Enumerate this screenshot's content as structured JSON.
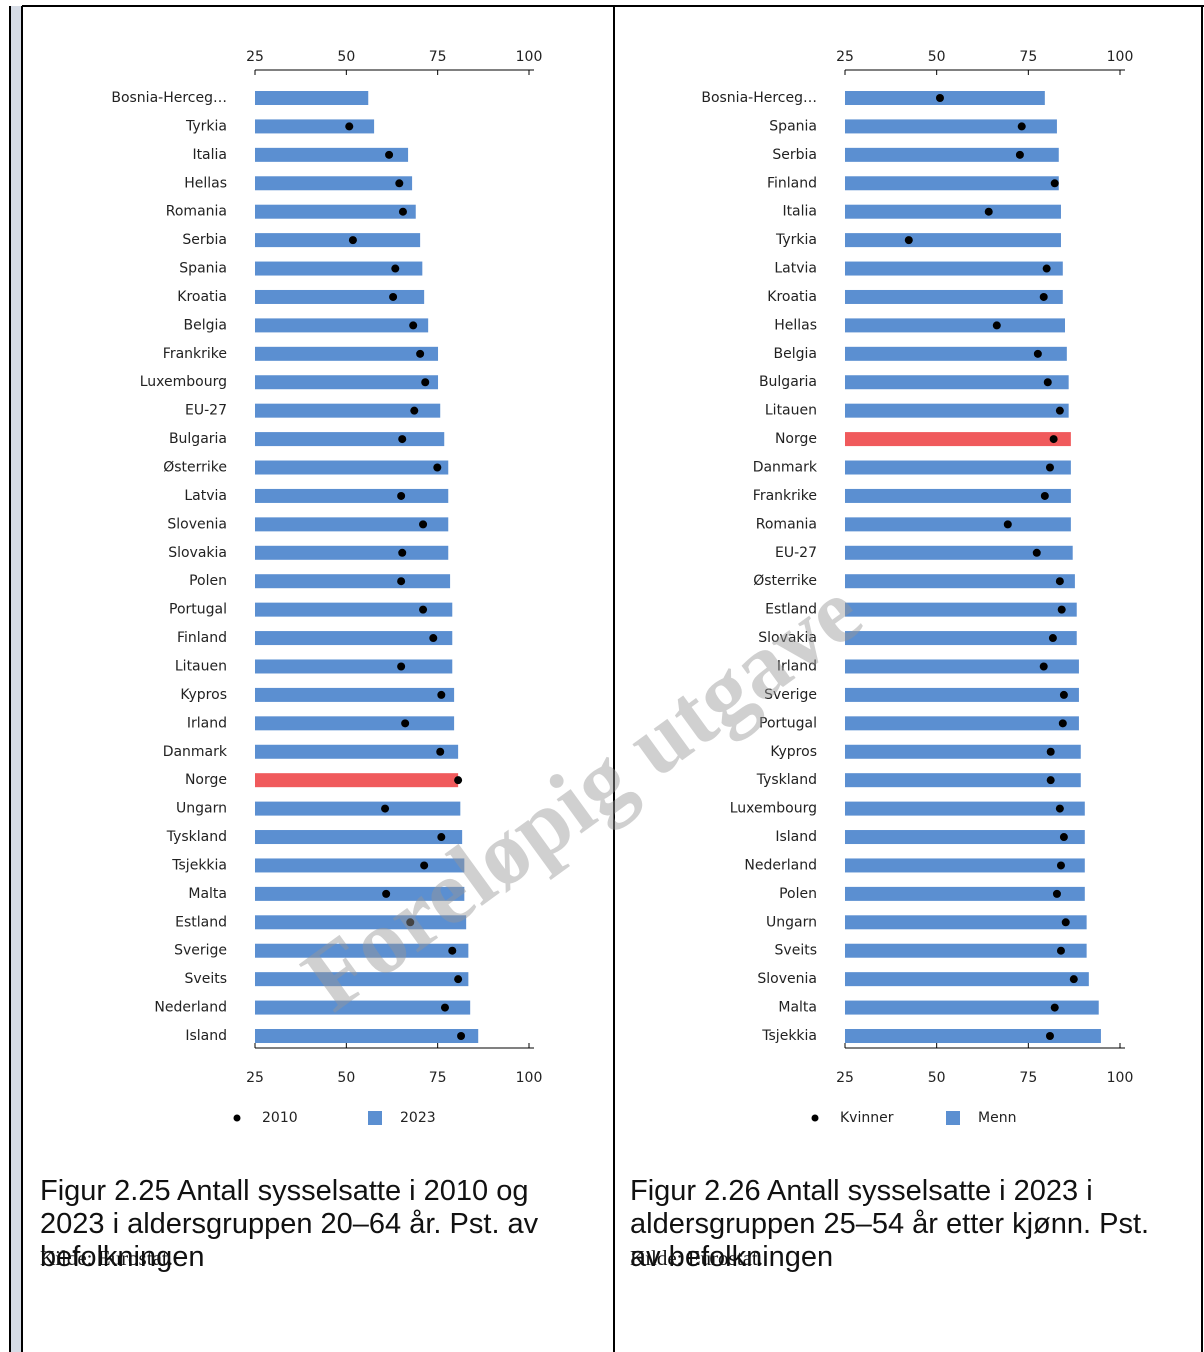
{
  "chart_data": [
    {
      "type": "bar",
      "categories": [
        "Bosnia-Herceg…",
        "Tyrkia",
        "Italia",
        "Hellas",
        "Romania",
        "Serbia",
        "Spania",
        "Kroatia",
        "Belgia",
        "Frankrike",
        "Luxembourg",
        "EU-27",
        "Bulgaria",
        "Østerrike",
        "Latvia",
        "Slovenia",
        "Slovakia",
        "Polen",
        "Portugal",
        "Finland",
        "Litauen",
        "Kypros",
        "Irland",
        "Danmark",
        "Norge",
        "Ungarn",
        "Tyskland",
        "Tsjekkia",
        "Malta",
        "Estland",
        "Sverige",
        "Sveits",
        "Nederland",
        "Island"
      ],
      "series": [
        {
          "name": "2010",
          "marker": "dot",
          "color": "#000000",
          "values": [
            null,
            50.8,
            61.7,
            64.5,
            65.5,
            51.8,
            63.4,
            62.8,
            68.3,
            70.2,
            71.6,
            68.6,
            65.3,
            74.9,
            65.0,
            71.0,
            65.3,
            65.0,
            71.0,
            73.8,
            65.0,
            76.0,
            66.1,
            75.7,
            80.6,
            60.6,
            76.0,
            71.3,
            60.9,
            67.5,
            79.0,
            80.6,
            77.0,
            81.4
          ]
        },
        {
          "name": "2023",
          "marker": "bar",
          "color": "#5b8fd1",
          "values": [
            56.0,
            57.6,
            66.9,
            68.0,
            69.0,
            70.2,
            70.8,
            71.3,
            72.4,
            75.1,
            75.1,
            75.7,
            76.8,
            77.9,
            77.9,
            77.9,
            77.9,
            78.4,
            79.0,
            79.0,
            79.0,
            79.5,
            79.5,
            80.6,
            80.6,
            81.2,
            81.7,
            82.3,
            82.3,
            82.8,
            83.4,
            83.4,
            83.9,
            86.1
          ]
        }
      ],
      "highlight": {
        "category": "Norge",
        "color": "#f05a5c"
      },
      "xlim": [
        25,
        100
      ],
      "xticks": [
        25,
        50,
        75,
        100
      ],
      "caption": "Figur 2.25 Antall sysselsatte i 2010 og 2023 i aldersgruppen 20–64 år. Pst. av befolkningen",
      "source": "Kilde: Eurostat."
    },
    {
      "type": "bar",
      "categories": [
        "Bosnia-Herceg…",
        "Spania",
        "Serbia",
        "Finland",
        "Italia",
        "Tyrkia",
        "Latvia",
        "Kroatia",
        "Hellas",
        "Belgia",
        "Bulgaria",
        "Litauen",
        "Norge",
        "Danmark",
        "Frankrike",
        "Romania",
        "EU-27",
        "Østerrike",
        "Estland",
        "Slovakia",
        "Irland",
        "Sverige",
        "Portugal",
        "Kypros",
        "Tyskland",
        "Luxembourg",
        "Island",
        "Nederland",
        "Polen",
        "Ungarn",
        "Sveits",
        "Slovenia",
        "Malta",
        "Tsjekkia"
      ],
      "series": [
        {
          "name": "Kvinner",
          "marker": "dot",
          "color": "#000000",
          "values": [
            50.9,
            73.2,
            72.7,
            82.2,
            64.2,
            42.4,
            80.0,
            79.2,
            66.4,
            77.6,
            80.3,
            83.6,
            81.9,
            80.9,
            79.5,
            69.4,
            77.3,
            83.6,
            84.1,
            81.7,
            79.2,
            84.7,
            84.4,
            81.1,
            81.1,
            83.6,
            84.7,
            83.9,
            82.8,
            85.2,
            83.9,
            87.4,
            82.2,
            80.9
          ]
        },
        {
          "name": "Menn",
          "marker": "bar",
          "color": "#5b8fd1",
          "values": [
            79.5,
            82.8,
            83.3,
            83.3,
            83.9,
            83.9,
            84.4,
            84.4,
            85.0,
            85.5,
            86.0,
            86.0,
            86.6,
            86.6,
            86.6,
            86.6,
            87.1,
            87.7,
            88.2,
            88.2,
            88.8,
            88.8,
            88.8,
            89.3,
            89.3,
            90.4,
            90.4,
            90.4,
            90.4,
            90.9,
            90.9,
            91.5,
            94.2,
            94.8
          ]
        }
      ],
      "highlight": {
        "category": "Norge",
        "color": "#f05a5c"
      },
      "xlim": [
        25,
        100
      ],
      "xticks": [
        25,
        50,
        75,
        100
      ],
      "caption": "Figur 2.26 Antall sysselsatte i 2023 i aldersgruppen 25–54 år etter kjønn. Pst. av befolkningen",
      "source": "Kilde: Eurostat."
    }
  ],
  "watermark": "Foreløpig utgave"
}
